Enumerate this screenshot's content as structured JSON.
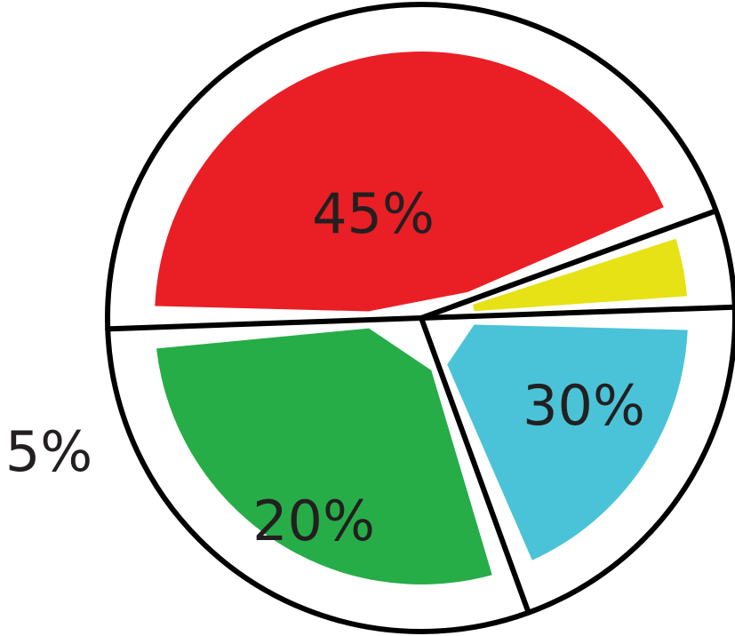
{
  "chart_data": {
    "type": "pie",
    "title": "",
    "slices": [
      {
        "label": "45%",
        "value": 45,
        "color": "#e91f25"
      },
      {
        "label": "30%",
        "value": 30,
        "color": "#27ad48"
      },
      {
        "label": "20%",
        "value": 20,
        "color": "#4ac3d8"
      },
      {
        "label": "5%",
        "value": 5,
        "color": "#e7e215"
      }
    ]
  }
}
